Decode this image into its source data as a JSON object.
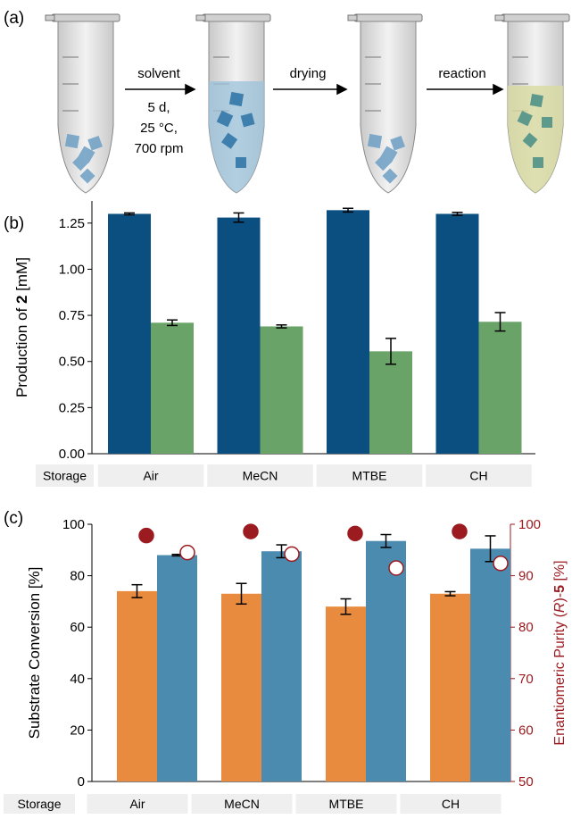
{
  "panel_a": {
    "label": "(a)",
    "step1": [
      "solvent",
      "5 d,",
      "25 °C,",
      "700 rpm"
    ],
    "step2": "drying",
    "step3": "reaction"
  },
  "chart_data": [
    {
      "type": "bar",
      "panel": "(b)",
      "ylabel": [
        "Production of ",
        "2",
        " [mM]"
      ],
      "row_label": "Storage",
      "categories": [
        "Air",
        "MeCN",
        "MTBE",
        "CH"
      ],
      "ylim": [
        0,
        1.37
      ],
      "yticks": [
        {
          "value": 0,
          "label": "0.00"
        },
        0.25,
        {
          "value": 0.5,
          "label": "0.50"
        },
        0.75,
        {
          "value": 1,
          "label": "1.00"
        },
        1.25
      ],
      "series": [
        {
          "color": "#0b4f80",
          "values": [
            1.3,
            1.28,
            1.32,
            1.3
          ],
          "errors": [
            0.005,
            0.025,
            0.01,
            0.008
          ]
        },
        {
          "color": "#69a368",
          "values": [
            0.71,
            0.69,
            0.555,
            0.715
          ],
          "errors": [
            0.015,
            0.008,
            0.07,
            0.05
          ]
        }
      ]
    },
    {
      "type": "bar",
      "panel": "(c)",
      "ylabel": [
        "Substrate Conversion [%]"
      ],
      "y2label": [
        "Enantiomeric Purity (",
        "R",
        ")-",
        "5",
        " [%]"
      ],
      "y2color": "#9b1b20",
      "row_label": "Storage",
      "categories": [
        "Air",
        "MeCN",
        "MTBE",
        "CH"
      ],
      "ylim": [
        0,
        100
      ],
      "yticks": [
        0,
        20,
        40,
        60,
        80,
        100
      ],
      "y2lim": [
        50,
        100
      ],
      "y2ticks": [
        50,
        60,
        70,
        80,
        90,
        100
      ],
      "series": [
        {
          "color": "#e88b3e",
          "values": [
            74,
            73,
            68,
            73
          ],
          "errors": [
            2.5,
            4,
            3,
            0.8
          ]
        },
        {
          "color": "#4b8bb0",
          "values": [
            88,
            89.5,
            93.5,
            90.5
          ],
          "errors": [
            0.3,
            2.5,
            2.5,
            5
          ]
        },
        {
          "type": "scatter",
          "axis": "y2",
          "color": "#9b1b20",
          "fill": "#9b1b20",
          "values": [
            97.8,
            98.6,
            98.2,
            98.6
          ]
        },
        {
          "type": "scatter",
          "axis": "y2",
          "color": "#9b1b20",
          "fill": "#ffffff",
          "values": [
            94.5,
            94.2,
            91.5,
            92.4
          ]
        }
      ]
    }
  ]
}
